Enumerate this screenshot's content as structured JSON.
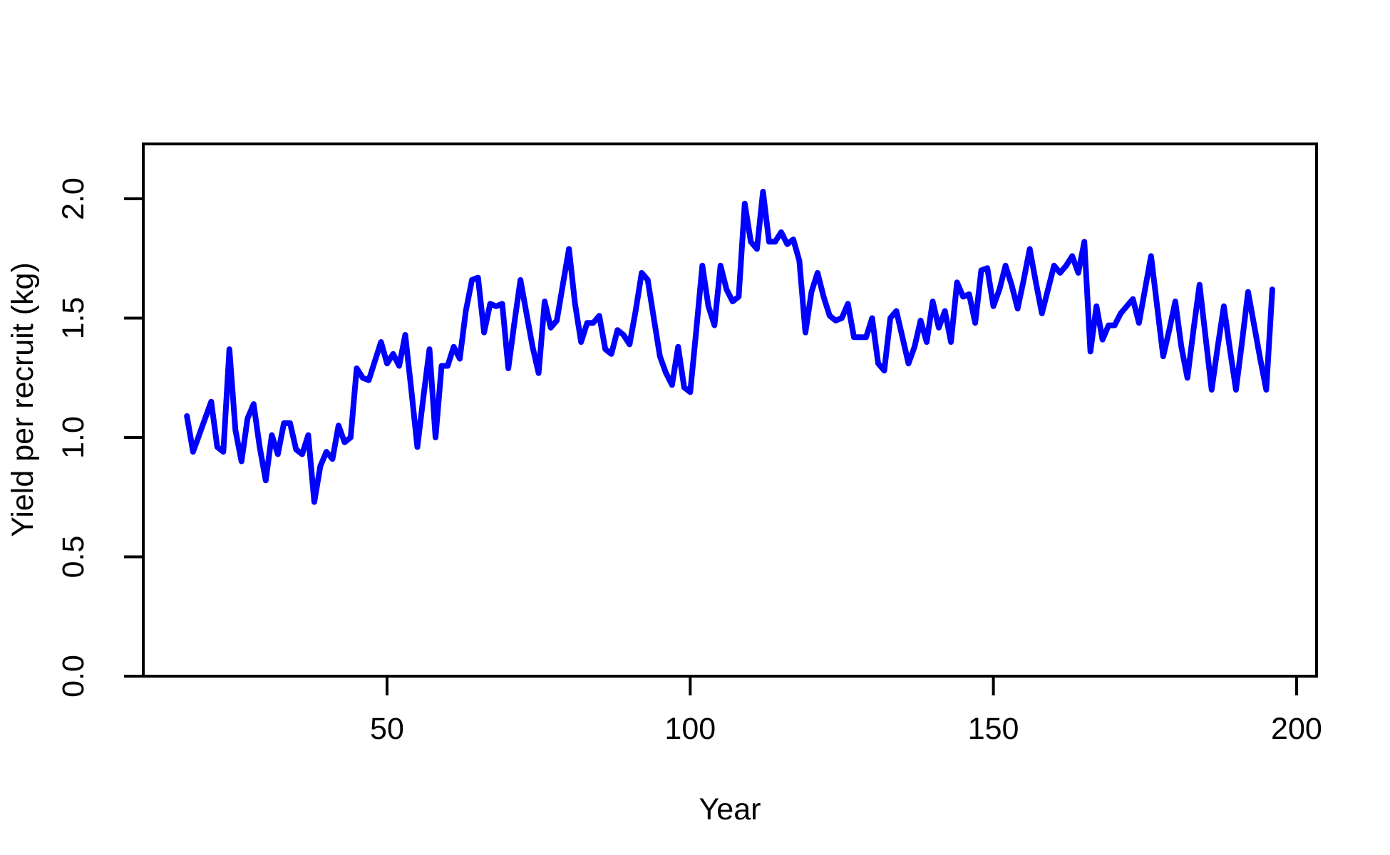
{
  "figure": {
    "background": "#ffffff",
    "box_color": "#000000",
    "line_color": "#0000ff"
  },
  "chart_data": {
    "type": "line",
    "title": "",
    "xlabel": "Year",
    "ylabel": "Yield per recruit (kg)",
    "xlim": [
      9.8,
      203.3
    ],
    "ylim": [
      0,
      2.23
    ],
    "xticks": [
      50,
      100,
      150,
      200
    ],
    "xtick_labels": [
      "50",
      "100",
      "150",
      "200"
    ],
    "yticks": [
      0,
      0.5,
      1,
      1.5,
      2
    ],
    "ytick_labels": [
      "0.0",
      "0.5",
      "1.0",
      "1.5",
      "2.0"
    ],
    "grid": false,
    "legend_position": "none",
    "series": [
      {
        "name": "yield-per-recruit",
        "color": "#0000ff",
        "x": [
          17,
          18,
          19,
          20,
          21,
          22,
          23,
          24,
          25,
          26,
          27,
          28,
          29,
          30,
          31,
          32,
          33,
          34,
          35,
          36,
          37,
          38,
          39,
          40,
          41,
          42,
          43,
          44,
          45,
          46,
          47,
          48,
          49,
          50,
          51,
          52,
          53,
          54,
          55,
          56,
          57,
          58,
          59,
          60,
          61,
          62,
          63,
          64,
          65,
          66,
          67,
          68,
          69,
          70,
          71,
          72,
          73,
          74,
          75,
          76,
          77,
          78,
          79,
          80,
          81,
          82,
          83,
          84,
          85,
          86,
          87,
          88,
          89,
          90,
          91,
          92,
          93,
          94,
          95,
          96,
          97,
          98,
          99,
          100,
          101,
          102,
          103,
          104,
          105,
          106,
          107,
          108,
          109,
          110,
          111,
          112,
          113,
          114,
          115,
          116,
          117,
          118,
          119,
          120,
          121,
          122,
          123,
          124,
          125,
          126,
          127,
          128,
          129,
          130,
          131,
          132,
          133,
          134,
          135,
          136,
          137,
          138,
          139,
          140,
          141,
          142,
          143,
          144,
          145,
          146,
          147,
          148,
          149,
          150,
          151,
          152,
          153,
          154,
          155,
          156,
          157,
          158,
          159,
          160,
          161,
          162,
          163,
          164,
          165,
          166,
          167,
          168,
          169,
          170,
          171,
          172,
          173,
          174,
          175,
          176,
          177,
          178,
          179,
          180,
          181,
          182,
          183,
          184,
          185,
          186,
          187,
          188,
          189,
          190,
          191,
          192,
          193,
          194,
          195,
          196
        ],
        "y": [
          1.09,
          0.94,
          1.01,
          1.08,
          1.15,
          0.96,
          0.94,
          1.37,
          1.03,
          0.9,
          1.08,
          1.14,
          0.96,
          0.82,
          1.01,
          0.93,
          1.06,
          1.06,
          0.95,
          0.93,
          1.01,
          0.73,
          0.88,
          0.94,
          0.91,
          1.05,
          0.98,
          1.0,
          1.29,
          1.25,
          1.24,
          1.32,
          1.4,
          1.31,
          1.35,
          1.3,
          1.43,
          1.2,
          0.96,
          1.17,
          1.37,
          1.0,
          1.3,
          1.3,
          1.38,
          1.33,
          1.53,
          1.66,
          1.67,
          1.44,
          1.56,
          1.55,
          1.56,
          1.29,
          1.48,
          1.66,
          1.52,
          1.38,
          1.27,
          1.57,
          1.46,
          1.49,
          1.64,
          1.79,
          1.56,
          1.4,
          1.48,
          1.48,
          1.51,
          1.37,
          1.35,
          1.45,
          1.43,
          1.39,
          1.53,
          1.69,
          1.66,
          1.5,
          1.34,
          1.27,
          1.22,
          1.38,
          1.21,
          1.19,
          1.45,
          1.72,
          1.55,
          1.47,
          1.72,
          1.62,
          1.57,
          1.59,
          1.98,
          1.82,
          1.79,
          2.03,
          1.82,
          1.82,
          1.86,
          1.81,
          1.83,
          1.74,
          1.44,
          1.61,
          1.69,
          1.59,
          1.51,
          1.49,
          1.5,
          1.56,
          1.42,
          1.42,
          1.42,
          1.5,
          1.31,
          1.28,
          1.5,
          1.53,
          1.42,
          1.31,
          1.38,
          1.49,
          1.4,
          1.57,
          1.46,
          1.53,
          1.4,
          1.65,
          1.59,
          1.6,
          1.48,
          1.7,
          1.71,
          1.55,
          1.62,
          1.72,
          1.64,
          1.54,
          1.66,
          1.79,
          1.65,
          1.52,
          1.62,
          1.72,
          1.69,
          1.72,
          1.76,
          1.69,
          1.82,
          1.36,
          1.55,
          1.41,
          1.47,
          1.47,
          1.52,
          1.55,
          1.58,
          1.48,
          1.62,
          1.76,
          1.55,
          1.34,
          1.45,
          1.57,
          1.38,
          1.25,
          1.45,
          1.64,
          1.42,
          1.2,
          1.38,
          1.55,
          1.37,
          1.2,
          1.4,
          1.61,
          1.47,
          1.33,
          1.2,
          1.62
        ]
      }
    ]
  }
}
